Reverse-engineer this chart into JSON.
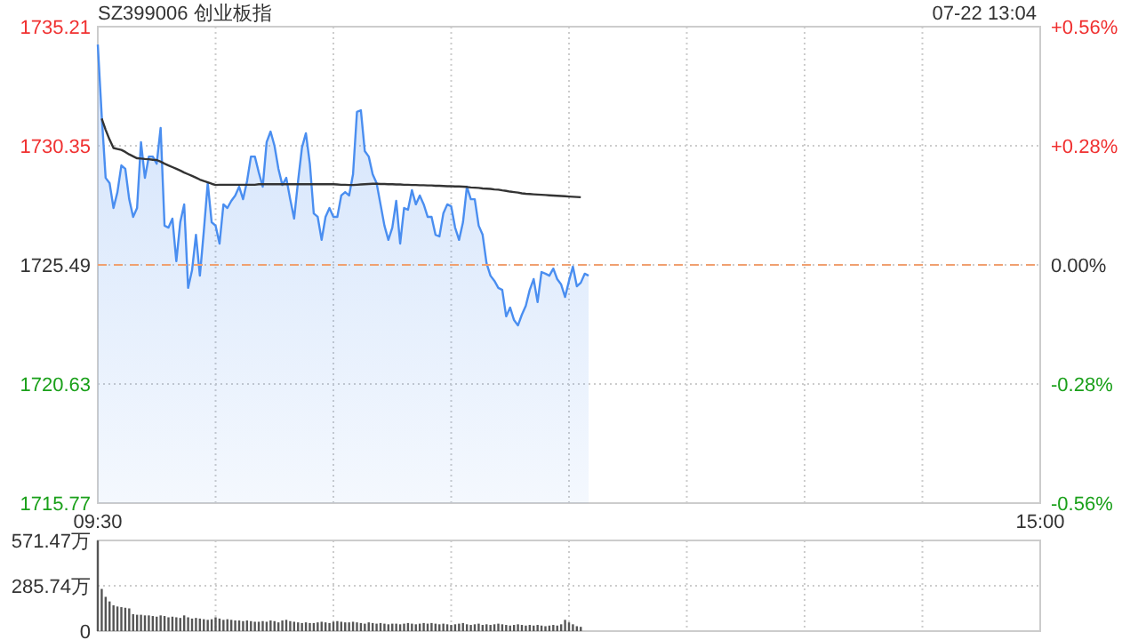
{
  "chart_data": [
    {
      "type": "area",
      "title": "SZ399006 创业板指",
      "annotations": [
        "07-22 13:04"
      ],
      "categories": [
        "09:30",
        null,
        null,
        null,
        null,
        null,
        null,
        null,
        null,
        null,
        null,
        null,
        null,
        null,
        null,
        null,
        null,
        null,
        null,
        null,
        null,
        null,
        null,
        null,
        null,
        null,
        null,
        null,
        null,
        null,
        null,
        null,
        null,
        null,
        null,
        null,
        null,
        null,
        null,
        null,
        null,
        null,
        null,
        null,
        null,
        null,
        null,
        null,
        null,
        null,
        null,
        null,
        null,
        null,
        null,
        null,
        null,
        null,
        null,
        null,
        null,
        null,
        null,
        null,
        null,
        null,
        null,
        null,
        null,
        null,
        null,
        null,
        null,
        null,
        null,
        null,
        null,
        null,
        null,
        null,
        null,
        null,
        null,
        null,
        null,
        null,
        null,
        null,
        null,
        null,
        null,
        null,
        null,
        null,
        null,
        null,
        null,
        null,
        null,
        null,
        null,
        null,
        null,
        null,
        null,
        null,
        null,
        null,
        null,
        null,
        null,
        null,
        null,
        null,
        null,
        null,
        null,
        null,
        null,
        null,
        null,
        null,
        null,
        null,
        null,
        null,
        null,
        null,
        null,
        null,
        null,
        null,
        null,
        null,
        null,
        null,
        null,
        null,
        null,
        null,
        null,
        null,
        null,
        null,
        null,
        null,
        null,
        null,
        null,
        null,
        null,
        null,
        null,
        null,
        null,
        null,
        null,
        null,
        null,
        null,
        null,
        null,
        null,
        null,
        null,
        null,
        null,
        null,
        null,
        null,
        null,
        null,
        null,
        null,
        null,
        null,
        null,
        null,
        null,
        null,
        null,
        null,
        null,
        null,
        null,
        null,
        null,
        null,
        null,
        null,
        null,
        null,
        null,
        null,
        null,
        null,
        null,
        null,
        null,
        null,
        null,
        null,
        null,
        null,
        null,
        null,
        null,
        null,
        null,
        null,
        null,
        null,
        null,
        null,
        null,
        null,
        null,
        null,
        null,
        null,
        null,
        null,
        null,
        null,
        null,
        null,
        null,
        null,
        null,
        null,
        null,
        null,
        null,
        null,
        null,
        null,
        null,
        null,
        null,
        null,
        "15:00"
      ],
      "ylim": [
        1715.77,
        1735.21
      ],
      "yticks": [
        1715.77,
        1720.63,
        1725.49,
        1730.35,
        1735.21
      ],
      "y2lim": [
        -0.56,
        0.56
      ],
      "y2ticks": [
        {
          "value": -0.56,
          "label": "-0.56%"
        },
        {
          "value": -0.28,
          "label": "-0.28%"
        },
        {
          "value": 0,
          "label": "0.00%"
        },
        {
          "value": 0.28,
          "label": "+0.28%"
        },
        {
          "value": 0.56,
          "label": "+0.56%"
        }
      ],
      "grid": true,
      "ref_lines": [
        {
          "axis": "y",
          "value": 1725.49,
          "color": "#f0a070",
          "line_style": "dashed"
        }
      ],
      "series": [
        {
          "color": "#4a8ef0",
          "values": [
            1734.48,
            1731.58,
            1729.04,
            1728.83,
            1727.81,
            1728.46,
            1729.55,
            1729.41,
            1728.17,
            1727.45,
            1727.81,
            1730.5,
            1729.04,
            1729.91,
            1729.91,
            1729.62,
            1731.08,
            1727.09,
            1727.01,
            1727.38,
            1725.64,
            1727.23,
            1727.96,
            1724.55,
            1725.27,
            1726.72,
            1725.05,
            1726.87,
            1728.83,
            1727.23,
            1727.09,
            1726.36,
            1727.96,
            1727.81,
            1728.1,
            1728.32,
            1728.68,
            1728.17,
            1728.9,
            1729.91,
            1729.91,
            1729.26,
            1728.68,
            1730.5,
            1730.93,
            1730.35,
            1729.41,
            1728.75,
            1729.04,
            1728.17,
            1727.38,
            1728.9,
            1730.28,
            1730.86,
            1729.62,
            1727.59,
            1727.45,
            1726.51,
            1727.45,
            1727.81,
            1727.45,
            1727.45,
            1728.32,
            1728.46,
            1728.32,
            1729.19,
            1731.73,
            1731.8,
            1730.13,
            1729.91,
            1729.19,
            1728.83,
            1727.96,
            1727.09,
            1726.51,
            1727.01,
            1728.1,
            1726.36,
            1727.81,
            1727.74,
            1728.54,
            1727.96,
            1728.32,
            1727.96,
            1727.45,
            1727.45,
            1726.72,
            1726.65,
            1727.59,
            1727.96,
            1727.88,
            1727.01,
            1726.51,
            1727.23,
            1728.68,
            1728.17,
            1728.17,
            1727.09,
            1726.72,
            1725.56,
            1725.05,
            1724.84,
            1724.55,
            1724.47,
            1723.39,
            1723.75,
            1723.24,
            1723.02,
            1723.46,
            1723.82,
            1724.47,
            1724.91,
            1723.97,
            1725.2,
            1725.13,
            1725.05,
            1725.34,
            1724.91,
            1724.69,
            1724.18,
            1724.84,
            1725.42,
            1724.62,
            1724.76,
            1725.13,
            1725.05,
            null,
            null,
            null,
            null,
            null,
            null,
            null,
            null,
            null,
            null,
            null,
            null,
            null,
            null,
            null,
            null,
            null,
            null,
            null,
            null,
            null,
            null,
            null,
            null,
            null,
            null,
            null,
            null,
            null,
            null,
            null,
            null,
            null,
            null,
            null,
            null,
            null,
            null,
            null,
            null,
            null,
            null,
            null,
            null,
            null,
            null,
            null,
            null,
            null,
            null,
            null,
            null,
            null,
            null,
            null,
            null,
            null,
            null,
            null,
            null,
            null,
            null,
            null,
            null,
            null,
            null,
            null,
            null,
            null,
            null,
            null,
            null,
            null,
            null,
            null,
            null,
            null,
            null,
            null,
            null,
            null,
            null,
            null,
            null,
            null,
            null,
            null,
            null,
            null,
            null,
            null,
            null,
            null,
            null,
            null,
            null,
            null,
            null,
            null,
            null,
            null,
            null,
            null,
            null,
            null,
            null,
            null,
            null,
            null,
            null,
            null,
            null,
            null,
            null,
            null
          ]
        },
        {
          "type": "line",
          "color": "#333333",
          "values": [
            null,
            1731.46,
            1731.0,
            1730.6,
            1730.26,
            1730.22,
            1730.18,
            1730.1,
            1730.0,
            1729.92,
            1729.84,
            1729.83,
            1729.81,
            1729.8,
            1729.78,
            1729.77,
            1729.7,
            1729.62,
            1729.55,
            1729.48,
            1729.41,
            1729.34,
            1729.26,
            1729.19,
            1729.12,
            1729.05,
            1728.97,
            1728.91,
            1728.86,
            1728.8,
            1728.75,
            1728.76,
            1728.76,
            1728.76,
            1728.76,
            1728.76,
            1728.76,
            1728.76,
            1728.76,
            1728.76,
            1728.76,
            1728.78,
            1728.78,
            1728.78,
            1728.78,
            1728.78,
            1728.78,
            1728.78,
            1728.78,
            1728.78,
            1728.78,
            1728.78,
            1728.78,
            1728.78,
            1728.78,
            1728.78,
            1728.78,
            1728.78,
            1728.78,
            1728.78,
            1728.78,
            1728.77,
            1728.76,
            1728.76,
            1728.75,
            1728.75,
            1728.76,
            1728.77,
            1728.78,
            1728.79,
            1728.8,
            1728.8,
            1728.79,
            1728.79,
            1728.78,
            1728.78,
            1728.77,
            1728.77,
            1728.76,
            1728.76,
            1728.75,
            1728.75,
            1728.74,
            1728.74,
            1728.73,
            1728.73,
            1728.72,
            1728.72,
            1728.71,
            1728.7,
            1728.7,
            1728.69,
            1728.69,
            1728.68,
            1728.67,
            1728.65,
            1728.64,
            1728.63,
            1728.61,
            1728.6,
            1728.59,
            1728.57,
            1728.56,
            1728.53,
            1728.51,
            1728.48,
            1728.46,
            1728.44,
            1728.41,
            1728.39,
            1728.38,
            1728.37,
            1728.36,
            1728.35,
            1728.34,
            1728.33,
            1728.32,
            1728.31,
            1728.3,
            1728.29,
            1728.28,
            1728.27,
            1728.26,
            1728.25,
            null,
            null,
            null,
            null,
            null,
            null,
            null,
            null,
            null,
            null,
            null,
            null,
            null,
            null,
            null,
            null,
            null,
            null,
            null,
            null,
            null,
            null,
            null,
            null,
            null,
            null,
            null,
            null,
            null,
            null,
            null,
            null,
            null,
            null,
            null,
            null,
            null,
            null,
            null,
            null,
            null,
            null,
            null,
            null,
            null,
            null,
            null,
            null,
            null,
            null,
            null,
            null,
            null,
            null,
            null,
            null,
            null,
            null,
            null,
            null,
            null,
            null,
            null,
            null,
            null,
            null,
            null,
            null,
            null,
            null,
            null,
            null,
            null,
            null,
            null,
            null,
            null,
            null,
            null,
            null,
            null,
            null,
            null,
            null,
            null,
            null,
            null,
            null,
            null,
            null,
            null,
            null,
            null,
            null,
            null,
            null,
            null,
            null,
            null,
            null,
            null,
            null,
            null,
            null,
            null,
            null,
            null,
            null,
            null,
            null,
            null,
            null,
            null,
            null,
            null,
            null,
            null
          ]
        }
      ]
    },
    {
      "type": "bar",
      "categories": [
        null,
        null,
        null,
        null,
        null,
        null,
        null,
        null,
        null,
        null,
        null,
        null,
        null,
        null,
        null,
        null,
        null,
        null,
        null,
        null,
        null,
        null,
        null,
        null,
        null,
        null,
        null,
        null,
        null,
        null,
        null,
        null,
        null,
        null,
        null,
        null,
        null,
        null,
        null,
        null,
        null,
        null,
        null,
        null,
        null,
        null,
        null,
        null,
        null,
        null,
        null,
        null,
        null,
        null,
        null,
        null,
        null,
        null,
        null,
        null,
        null,
        null,
        null,
        null,
        null,
        null,
        null,
        null,
        null,
        null,
        null,
        null,
        null,
        null,
        null,
        null,
        null,
        null,
        null,
        null,
        null,
        null,
        null,
        null,
        null,
        null,
        null,
        null,
        null,
        null,
        null,
        null,
        null,
        null,
        null,
        null,
        null,
        null,
        null,
        null,
        null,
        null,
        null,
        null,
        null,
        null,
        null,
        null,
        null,
        null,
        null,
        null,
        null,
        null,
        null,
        null,
        null,
        null,
        null,
        null,
        null,
        null,
        null,
        null,
        null,
        null,
        null,
        null,
        null,
        null,
        null,
        null,
        null,
        null,
        null,
        null,
        null,
        null,
        null,
        null,
        null,
        null,
        null,
        null,
        null,
        null,
        null,
        null,
        null,
        null,
        null,
        null,
        null,
        null,
        null,
        null,
        null,
        null,
        null,
        null,
        null,
        null,
        null,
        null,
        null,
        null,
        null,
        null,
        null,
        null,
        null,
        null,
        null,
        null,
        null,
        null,
        null,
        null,
        null,
        null,
        null,
        null,
        null,
        null,
        null,
        null,
        null,
        null,
        null,
        null,
        null,
        null,
        null,
        null,
        null,
        null,
        null,
        null,
        null,
        null,
        null,
        null,
        null,
        null,
        null,
        null,
        null,
        null,
        null,
        null,
        null,
        null,
        null,
        null,
        null,
        null,
        null,
        null,
        null,
        null,
        null,
        null,
        null,
        null,
        null,
        null,
        null,
        null,
        null,
        null,
        null,
        null,
        null,
        null,
        null,
        null,
        null,
        null,
        null,
        null,
        null
      ],
      "ylim": [
        0,
        571.47
      ],
      "yticks": [
        0,
        {
          "value": 285.74,
          "label": "285.74万"
        },
        {
          "value": 571.47,
          "label": "571.47万"
        }
      ],
      "grid": true,
      "tick_labels": "y",
      "series": [
        {
          "color": "#555555",
          "values": [
            571,
            266,
            216,
            187,
            163,
            155,
            151,
            147,
            143,
            107,
            103,
            103,
            99,
            99,
            95,
            91,
            99,
            95,
            87,
            91,
            87,
            83,
            99,
            87,
            79,
            83,
            79,
            75,
            71,
            75,
            87,
            79,
            71,
            75,
            71,
            67,
            67,
            63,
            67,
            63,
            59,
            59,
            63,
            59,
            67,
            63,
            55,
            67,
            71,
            63,
            59,
            55,
            51,
            55,
            51,
            51,
            55,
            59,
            55,
            51,
            59,
            63,
            59,
            55,
            55,
            59,
            55,
            51,
            47,
            55,
            51,
            47,
            51,
            47,
            43,
            47,
            47,
            43,
            47,
            51,
            47,
            43,
            47,
            51,
            47,
            51,
            47,
            43,
            47,
            43,
            39,
            43,
            47,
            51,
            43,
            39,
            43,
            47,
            39,
            43,
            39,
            43,
            47,
            43,
            39,
            35,
            39,
            43,
            39,
            35,
            39,
            35,
            39,
            35,
            31,
            35,
            39,
            35,
            43,
            71,
            55,
            43,
            31,
            27,
            null,
            null,
            null,
            null,
            null,
            null,
            null,
            null,
            null,
            null,
            null,
            null,
            null,
            null,
            null,
            null,
            null,
            null,
            null,
            null,
            null,
            null,
            null,
            null,
            null,
            null,
            null,
            null,
            null,
            null,
            null,
            null,
            null,
            null,
            null,
            null,
            null,
            null,
            null,
            null,
            null,
            null,
            null,
            null,
            null,
            null,
            null,
            null,
            null,
            null,
            null,
            null,
            null,
            null,
            null,
            null,
            null,
            null,
            null,
            null,
            null,
            null,
            null,
            null,
            null,
            null,
            null,
            null,
            null,
            null,
            null,
            null,
            null,
            null,
            null,
            null,
            null,
            null,
            null,
            null,
            null,
            null,
            null,
            null,
            null,
            null,
            null,
            null,
            null,
            null,
            null,
            null,
            null,
            null,
            null,
            null,
            null,
            null,
            null,
            null,
            null,
            null,
            null,
            null,
            null,
            null,
            null,
            null,
            null,
            null,
            null,
            null,
            null,
            null,
            null,
            null,
            null
          ]
        }
      ]
    }
  ]
}
